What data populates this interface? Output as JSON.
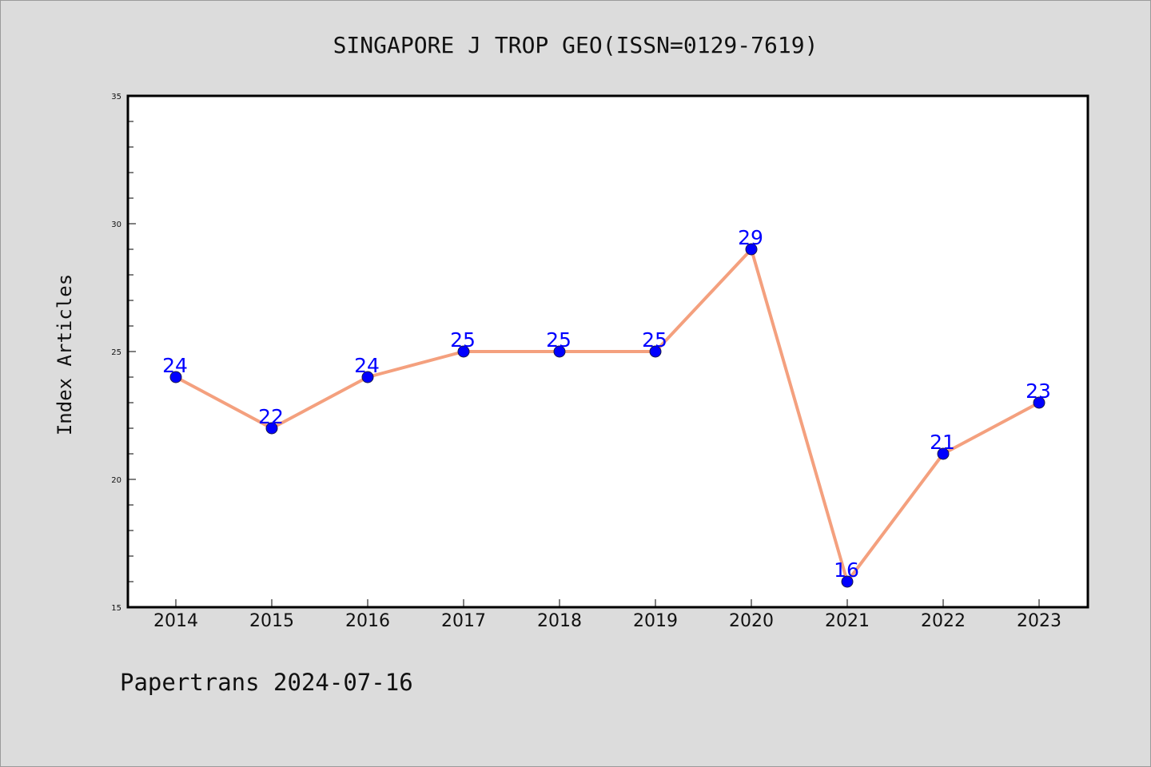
{
  "chart_data": {
    "type": "line",
    "title": "SINGAPORE J TROP GEO(ISSN=0129-7619)",
    "xlabel": "",
    "ylabel": "Index Articles",
    "categories": [
      "2014",
      "2015",
      "2016",
      "2017",
      "2018",
      "2019",
      "2020",
      "2021",
      "2022",
      "2023"
    ],
    "series": [
      {
        "values": [
          24,
          22,
          24,
          25,
          25,
          25,
          29,
          16,
          21,
          23
        ]
      }
    ],
    "ylim": [
      15,
      35
    ],
    "yticks": [
      15,
      20,
      25,
      30,
      35
    ],
    "grid": false,
    "line_color": "#f4a07e",
    "marker_color": "#0000ff",
    "label_color": "#0000ff"
  },
  "footer": "Papertrans 2024-07-16"
}
